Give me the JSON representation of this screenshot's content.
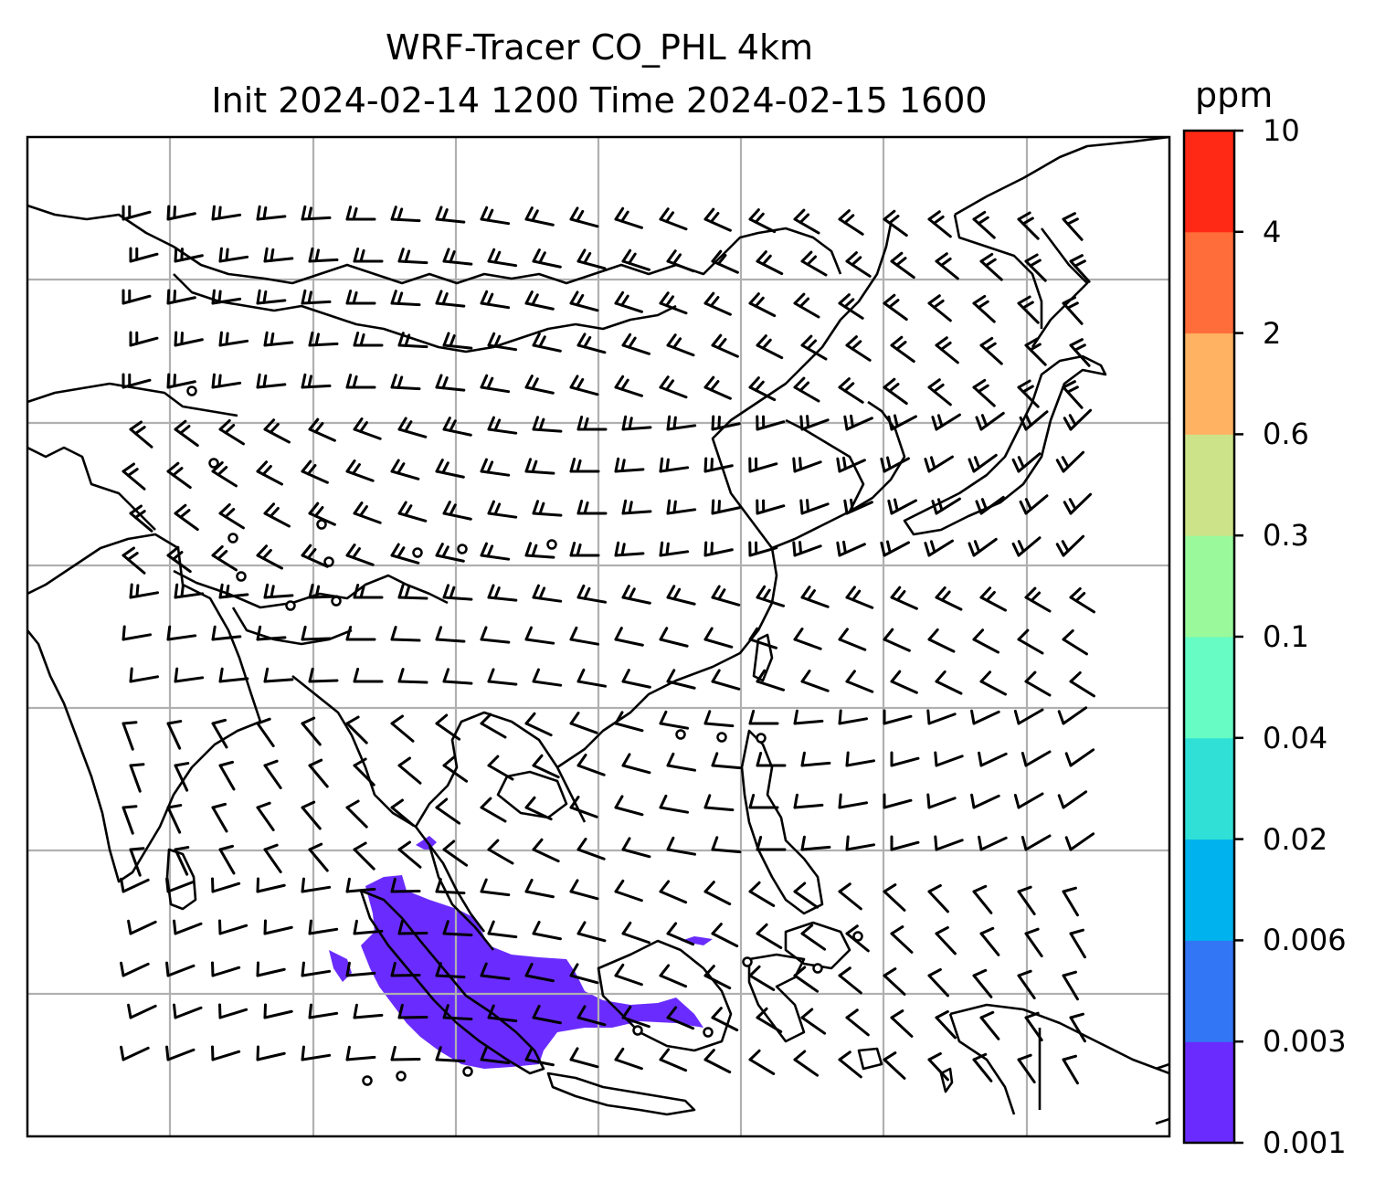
{
  "title": {
    "line1": "WRF-Tracer CO_PHL 4km",
    "line2": "Init 2024-02-14 1200 Time 2024-02-15 1600"
  },
  "colorbar": {
    "unit": "ppm",
    "tick_labels": [
      "0.001",
      "0.003",
      "0.006",
      "0.02",
      "0.04",
      "0.1",
      "0.3",
      "0.6",
      "2",
      "4",
      "10"
    ],
    "colors": [
      "#6a2cfe",
      "#3276f5",
      "#00b2ee",
      "#30e0d6",
      "#66fcc4",
      "#99f99b",
      "#cde389",
      "#ffb262",
      "#ff6e3a",
      "#ff2916"
    ]
  },
  "map": {
    "region": "South and East Asia to Maritime Continent",
    "tracer_plume_color": "#6a2cfe",
    "coastline_color": "#000000",
    "gridline_color": "#b0b0b0",
    "wind_barbs": "present",
    "calm_wind_markers": "present"
  }
}
